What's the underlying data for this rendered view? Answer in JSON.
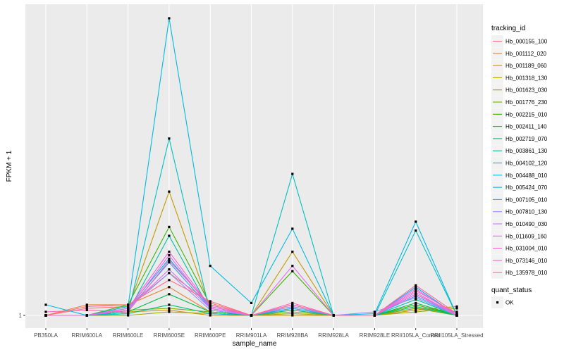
{
  "chart_data": {
    "type": "line",
    "xlabel": "sample_name",
    "ylabel": "FPKM + 1",
    "categories": [
      "PB350LA",
      "RRIM600LA",
      "RRIM600LE",
      "RRIM600SE",
      "RRIM600PE",
      "RRIM901LA",
      "RRIM928BA",
      "RRIM928LA",
      "RRIM928LE",
      "RRII105LA_Control",
      "RRII105LA_Stressed"
    ],
    "y_tick_labels": [
      "1"
    ],
    "y_ticks": [
      1
    ],
    "ylim": [
      0.6,
      9.7
    ],
    "grid": true,
    "legend_position": "right",
    "legends": [
      {
        "title": "tracking_id",
        "entries": [
          "Hb_000155_100",
          "Hb_001112_020",
          "Hb_001189_060",
          "Hb_001318_130",
          "Hb_001623_030",
          "Hb_001776_230",
          "Hb_002215_010",
          "Hb_002411_140",
          "Hb_002719_070",
          "Hb_003861_130",
          "Hb_004102_120",
          "Hb_004488_010",
          "Hb_005424_070",
          "Hb_007105_010",
          "Hb_007810_130",
          "Hb_010490_030",
          "Hb_011609_160",
          "Hb_031004_010",
          "Hb_073146_010",
          "Hb_135978_010"
        ]
      },
      {
        "title": "quant_status",
        "entries": [
          "OK"
        ]
      }
    ],
    "series": [
      {
        "name": "Hb_000155_100",
        "color": "#F8766D",
        "values": [
          1.0,
          1.2,
          1.25,
          2.2,
          1.35,
          1.0,
          1.15,
          1.0,
          1.0,
          1.6,
          1.05
        ]
      },
      {
        "name": "Hb_001112_020",
        "color": "#EA8331",
        "values": [
          1.0,
          1.3,
          1.3,
          1.8,
          1.1,
          1.0,
          1.2,
          1.0,
          1.0,
          1.3,
          1.0
        ]
      },
      {
        "name": "Hb_001189_060",
        "color": "#D89000",
        "values": [
          1.0,
          1.0,
          1.1,
          1.15,
          1.0,
          1.0,
          1.0,
          1.0,
          1.0,
          1.15,
          1.25
        ]
      },
      {
        "name": "Hb_001318_130",
        "color": "#C09B00",
        "values": [
          1.0,
          1.0,
          1.2,
          4.5,
          1.2,
          1.0,
          2.8,
          1.0,
          1.0,
          1.2,
          1.1
        ]
      },
      {
        "name": "Hb_001623_030",
        "color": "#A3A500",
        "values": [
          1.0,
          1.0,
          1.0,
          1.1,
          1.05,
          1.0,
          1.05,
          1.0,
          1.0,
          1.1,
          1.2
        ]
      },
      {
        "name": "Hb_001776_230",
        "color": "#7CAE00",
        "values": [
          1.0,
          1.0,
          1.15,
          1.2,
          1.1,
          1.0,
          1.1,
          1.0,
          1.0,
          1.2,
          1.0
        ]
      },
      {
        "name": "Hb_002215_010",
        "color": "#39B600",
        "values": [
          1.0,
          1.0,
          1.3,
          3.5,
          1.3,
          1.0,
          2.25,
          1.0,
          1.0,
          1.3,
          1.0
        ]
      },
      {
        "name": "Hb_002411_140",
        "color": "#00BB4E",
        "values": [
          1.0,
          1.0,
          1.1,
          1.6,
          1.1,
          1.0,
          1.25,
          1.0,
          1.0,
          1.35,
          1.0
        ]
      },
      {
        "name": "Hb_002719_070",
        "color": "#00BF7D",
        "values": [
          1.0,
          1.0,
          1.05,
          1.3,
          1.05,
          1.0,
          1.15,
          1.0,
          1.0,
          1.25,
          1.0
        ]
      },
      {
        "name": "Hb_003861_130",
        "color": "#00C1A3",
        "values": [
          1.0,
          1.0,
          1.1,
          3.25,
          1.15,
          1.0,
          1.2,
          1.0,
          1.0,
          1.45,
          1.0
        ]
      },
      {
        "name": "Hb_004102_120",
        "color": "#00BFC4",
        "values": [
          1.0,
          1.0,
          1.05,
          6.0,
          1.05,
          1.0,
          5.0,
          1.0,
          1.0,
          3.4,
          1.0
        ]
      },
      {
        "name": "Hb_004488_010",
        "color": "#00BAE0",
        "values": [
          1.3,
          1.0,
          1.25,
          9.4,
          2.4,
          1.35,
          3.45,
          1.0,
          1.05,
          3.65,
          1.0
        ]
      },
      {
        "name": "Hb_005424_070",
        "color": "#00B0F6",
        "values": [
          1.0,
          1.0,
          1.2,
          2.6,
          1.25,
          1.0,
          1.3,
          1.0,
          1.0,
          1.8,
          1.0
        ]
      },
      {
        "name": "Hb_007105_010",
        "color": "#35A2FF",
        "values": [
          1.0,
          1.0,
          1.15,
          2.5,
          1.2,
          1.0,
          1.2,
          1.0,
          1.0,
          1.55,
          1.0
        ]
      },
      {
        "name": "Hb_007810_130",
        "color": "#9590FF",
        "values": [
          1.0,
          1.0,
          1.2,
          2.2,
          1.15,
          1.0,
          1.25,
          1.0,
          1.1,
          1.5,
          1.0
        ]
      },
      {
        "name": "Hb_010490_030",
        "color": "#C77CFF",
        "values": [
          1.0,
          1.0,
          1.2,
          2.3,
          1.2,
          1.0,
          1.3,
          1.0,
          1.0,
          1.65,
          1.0
        ]
      },
      {
        "name": "Hb_011609_160",
        "color": "#E76BF3",
        "values": [
          1.0,
          1.0,
          1.15,
          2.7,
          1.2,
          1.0,
          2.4,
          1.0,
          1.0,
          1.75,
          1.0
        ]
      },
      {
        "name": "Hb_031004_010",
        "color": "#FA62DB",
        "values": [
          1.0,
          1.0,
          1.2,
          2.8,
          1.25,
          1.0,
          1.3,
          1.0,
          1.0,
          1.6,
          1.0
        ]
      },
      {
        "name": "Hb_073146_010",
        "color": "#FF62BC",
        "values": [
          1.1,
          1.15,
          1.1,
          2.55,
          1.3,
          1.0,
          1.35,
          1.0,
          1.0,
          1.7,
          1.05
        ]
      },
      {
        "name": "Hb_135978_010",
        "color": "#FF6C91",
        "values": [
          1.0,
          1.25,
          1.3,
          2.0,
          1.4,
          1.0,
          1.3,
          1.0,
          1.0,
          1.85,
          1.05
        ]
      }
    ]
  }
}
